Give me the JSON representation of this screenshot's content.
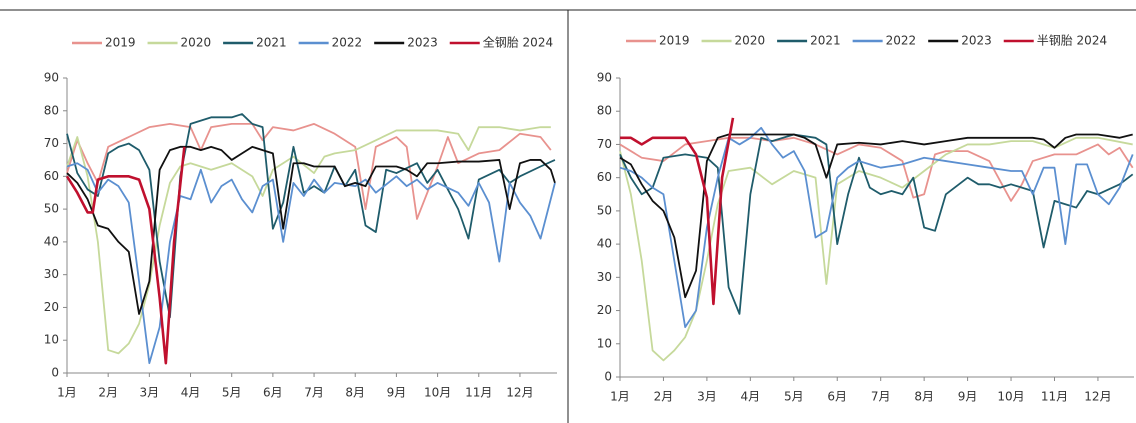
{
  "chart_data": [
    {
      "type": "line",
      "xlim": [
        1,
        12.9
      ],
      "ylim": [
        0,
        90
      ],
      "yticks": [
        0,
        10,
        20,
        30,
        40,
        50,
        60,
        70,
        80,
        90
      ],
      "xticks": [
        {
          "value": 1,
          "label": "1月"
        },
        {
          "value": 2,
          "label": "2月"
        },
        {
          "value": 3,
          "label": "3月"
        },
        {
          "value": 4,
          "label": "4月"
        },
        {
          "value": 5,
          "label": "5月"
        },
        {
          "value": 6,
          "label": "6月"
        },
        {
          "value": 7,
          "label": "7月"
        },
        {
          "value": 8,
          "label": "8月"
        },
        {
          "value": 9,
          "label": "9月"
        },
        {
          "value": 10,
          "label": "10月"
        },
        {
          "value": 11,
          "label": "11月"
        },
        {
          "value": 12,
          "label": "12月"
        }
      ],
      "series": [
        {
          "name": "2019",
          "color": "#e8928e",
          "x": [
            1,
            1.25,
            1.5,
            1.75,
            2,
            2.5,
            3,
            3.5,
            4,
            4.25,
            4.5,
            5,
            5.5,
            5.75,
            6,
            6.5,
            7,
            7.5,
            8,
            8.25,
            8.5,
            9,
            9.25,
            9.5,
            10,
            10.25,
            10.5,
            11,
            11.5,
            12,
            12.5,
            12.75
          ],
          "values": [
            61,
            71,
            64,
            58,
            69,
            72,
            75,
            76,
            75,
            68,
            75,
            76,
            76,
            71,
            75,
            74,
            76,
            73,
            69,
            50,
            69,
            72,
            69,
            47,
            63,
            72,
            64,
            67,
            68,
            73,
            72,
            68
          ]
        },
        {
          "name": "2020",
          "color": "#c6d99b",
          "x": [
            1,
            1.25,
            1.5,
            1.75,
            2,
            2.25,
            2.5,
            2.75,
            3,
            3.25,
            3.5,
            3.75,
            4,
            4.5,
            5,
            5.5,
            5.75,
            6,
            6.5,
            7,
            7.25,
            7.5,
            8,
            8.5,
            9,
            9.5,
            10,
            10.5,
            10.75,
            11,
            11.5,
            12,
            12.5,
            12.75
          ],
          "values": [
            63,
            72,
            60,
            40,
            7,
            6,
            9,
            15,
            27,
            45,
            58,
            63,
            64,
            62,
            64,
            60,
            54,
            62,
            66,
            61,
            66,
            67,
            68,
            71,
            74,
            74,
            74,
            73,
            68,
            75,
            75,
            74,
            75,
            75
          ]
        },
        {
          "name": "2021",
          "color": "#1f5c6b",
          "x": [
            1,
            1.25,
            1.5,
            1.75,
            2,
            2.25,
            2.5,
            2.75,
            3,
            3.25,
            3.5,
            3.75,
            4,
            4.25,
            4.5,
            5,
            5.25,
            5.5,
            5.75,
            6,
            6.25,
            6.5,
            6.75,
            7,
            7.25,
            7.5,
            7.75,
            8,
            8.25,
            8.5,
            8.75,
            9,
            9.5,
            9.75,
            10,
            10.5,
            10.75,
            11,
            11.5,
            11.75,
            12,
            12.5,
            12.85
          ],
          "values": [
            73,
            61,
            56,
            54,
            67,
            69,
            70,
            68,
            62,
            34,
            17,
            60,
            76,
            77,
            78,
            78,
            79,
            76,
            75,
            44,
            52,
            69,
            55,
            57,
            55,
            63,
            57,
            62,
            45,
            43,
            62,
            61,
            64,
            58,
            62,
            50,
            41,
            59,
            62,
            58,
            60,
            63,
            65
          ]
        },
        {
          "name": "2022",
          "color": "#5b8fd0",
          "x": [
            1,
            1.25,
            1.5,
            1.75,
            2,
            2.25,
            2.5,
            2.75,
            3,
            3.25,
            3.5,
            3.75,
            4,
            4.25,
            4.5,
            4.75,
            5,
            5.25,
            5.5,
            5.75,
            6,
            6.25,
            6.5,
            6.75,
            7,
            7.25,
            7.5,
            8,
            8.25,
            8.5,
            9,
            9.25,
            9.5,
            9.75,
            10,
            10.5,
            10.75,
            11,
            11.25,
            11.5,
            11.75,
            12,
            12.25,
            12.5,
            12.85
          ],
          "values": [
            63,
            64,
            62,
            55,
            59,
            57,
            52,
            28,
            3,
            14,
            40,
            54,
            53,
            62,
            52,
            57,
            59,
            53,
            49,
            57,
            59,
            40,
            58,
            54,
            59,
            55,
            58,
            57,
            59,
            55,
            60,
            57,
            59,
            56,
            58,
            55,
            51,
            58,
            52,
            34,
            58,
            52,
            48,
            41,
            58
          ]
        },
        {
          "name": "2023",
          "color": "#111111",
          "x": [
            1,
            1.25,
            1.5,
            1.75,
            2,
            2.25,
            2.5,
            2.75,
            3,
            3.25,
            3.5,
            3.75,
            4,
            4.25,
            4.5,
            4.75,
            5,
            5.25,
            5.5,
            5.75,
            6,
            6.25,
            6.5,
            6.75,
            7,
            7.25,
            7.5,
            7.75,
            8,
            8.25,
            8.5,
            8.75,
            9,
            9.25,
            9.5,
            9.75,
            10,
            10.5,
            11,
            11.5,
            11.75,
            12,
            12.25,
            12.5,
            12.75,
            12.85
          ],
          "values": [
            61,
            58,
            53,
            45,
            44,
            40,
            37,
            18,
            28,
            62,
            68,
            69,
            69,
            68,
            69,
            68,
            65,
            67,
            69,
            68,
            67,
            44,
            64,
            64,
            63,
            63,
            63,
            57,
            58,
            57,
            63,
            63,
            63,
            62,
            60,
            64,
            64,
            64.5,
            64.5,
            65,
            50,
            64,
            65,
            65,
            62,
            58
          ]
        },
        {
          "name": "全钢胎 2024",
          "color": "#c0102e",
          "x": [
            1,
            1.25,
            1.5,
            1.625,
            1.75,
            2,
            2.25,
            2.5,
            2.75,
            3,
            3.25,
            3.4,
            3.6,
            3.85
          ],
          "values": [
            60,
            55,
            49,
            49,
            59,
            60,
            60,
            60,
            59,
            50,
            23,
            3,
            40,
            69
          ]
        }
      ]
    },
    {
      "type": "line",
      "xlim": [
        1,
        12.83
      ],
      "ylim": [
        0,
        90
      ],
      "yticks": [
        0,
        10,
        20,
        30,
        40,
        50,
        60,
        70,
        80,
        90
      ],
      "xticks": [
        {
          "value": 1,
          "label": "1月"
        },
        {
          "value": 2,
          "label": "2月"
        },
        {
          "value": 3,
          "label": "3月"
        },
        {
          "value": 4,
          "label": "4月"
        },
        {
          "value": 5,
          "label": "5月"
        },
        {
          "value": 6,
          "label": "6月"
        },
        {
          "value": 7,
          "label": "7月"
        },
        {
          "value": 8,
          "label": "8月"
        },
        {
          "value": 9,
          "label": "9月"
        },
        {
          "value": 10,
          "label": "10月"
        },
        {
          "value": 11,
          "label": "11月"
        },
        {
          "value": 12,
          "label": "12月"
        }
      ],
      "series": [
        {
          "name": "2019",
          "color": "#e8928e",
          "x": [
            1,
            1.5,
            2,
            2.5,
            3,
            3.5,
            4,
            4.5,
            5,
            5.5,
            6,
            6.5,
            7,
            7.5,
            7.75,
            8,
            8.25,
            8.5,
            9,
            9.5,
            10,
            10.25,
            10.5,
            11,
            11.5,
            12,
            12.25,
            12.5,
            12.8
          ],
          "values": [
            70,
            66,
            65,
            70,
            71,
            72,
            72,
            71,
            72,
            70,
            67,
            70,
            69,
            65,
            54,
            55,
            67,
            68,
            68,
            65,
            53,
            58,
            65,
            67,
            67,
            70,
            67,
            69,
            63
          ]
        },
        {
          "name": "2020",
          "color": "#c6d99b",
          "x": [
            1,
            1.25,
            1.5,
            1.75,
            2,
            2.25,
            2.5,
            2.75,
            3,
            3.25,
            3.5,
            4,
            4.5,
            5,
            5.5,
            5.75,
            6,
            6.5,
            7,
            7.5,
            8,
            8.5,
            9,
            9.5,
            10,
            10.5,
            11,
            11.5,
            12,
            12.8
          ],
          "values": [
            68,
            55,
            35,
            8,
            5,
            8,
            12,
            20,
            35,
            52,
            62,
            63,
            58,
            62,
            60,
            28,
            58,
            62,
            60,
            57,
            62,
            67,
            70,
            70,
            71,
            71,
            69,
            72,
            72,
            70
          ]
        },
        {
          "name": "2021",
          "color": "#1f5c6b",
          "x": [
            1,
            1.25,
            1.5,
            1.75,
            2,
            2.5,
            3,
            3.25,
            3.5,
            3.75,
            4,
            4.25,
            4.5,
            5,
            5.5,
            5.75,
            6,
            6.25,
            6.5,
            6.75,
            7,
            7.25,
            7.5,
            7.75,
            8,
            8.25,
            8.5,
            9,
            9.25,
            9.5,
            9.75,
            10,
            10.5,
            10.75,
            11,
            11.25,
            11.5,
            11.75,
            12,
            12.5,
            12.8
          ],
          "values": [
            67,
            60,
            55,
            57,
            66,
            67,
            66,
            63,
            27,
            19,
            55,
            72,
            71,
            73,
            72,
            70,
            40,
            55,
            66,
            57,
            55,
            56,
            55,
            60,
            45,
            44,
            55,
            60,
            58,
            58,
            57,
            58,
            56,
            39,
            53,
            52,
            51,
            56,
            55,
            58,
            61
          ]
        },
        {
          "name": "2022",
          "color": "#5b8fd0",
          "x": [
            1,
            1.25,
            1.5,
            1.75,
            2,
            2.25,
            2.5,
            2.75,
            3,
            3.25,
            3.5,
            3.75,
            4,
            4.25,
            4.5,
            4.75,
            5,
            5.25,
            5.5,
            5.75,
            6,
            6.25,
            6.5,
            6.75,
            7,
            7.5,
            8,
            8.5,
            9,
            9.5,
            10,
            10.25,
            10.5,
            10.75,
            11,
            11.25,
            11.5,
            11.75,
            12,
            12.25,
            12.5,
            12.8
          ],
          "values": [
            63,
            62,
            60,
            57,
            55,
            35,
            15,
            20,
            45,
            60,
            72,
            70,
            72,
            75,
            70,
            66,
            68,
            62,
            42,
            44,
            60,
            63,
            65,
            64,
            63,
            64,
            66,
            65,
            64,
            63,
            62,
            62,
            55,
            63,
            63,
            40,
            64,
            64,
            55,
            52,
            57,
            67
          ]
        },
        {
          "name": "2023",
          "color": "#111111",
          "x": [
            1,
            1.25,
            1.5,
            1.75,
            2,
            2.25,
            2.5,
            2.75,
            3,
            3.25,
            3.5,
            4,
            4.5,
            5,
            5.25,
            5.5,
            5.75,
            6,
            6.5,
            7,
            7.5,
            8,
            8.5,
            9,
            9.5,
            10,
            10.5,
            10.75,
            11,
            11.25,
            11.5,
            12,
            12.5,
            12.8
          ],
          "values": [
            66,
            64,
            58,
            53,
            50,
            42,
            24,
            32,
            65,
            72,
            73,
            73,
            73,
            73,
            72,
            70,
            60,
            70,
            70.5,
            70,
            71,
            70,
            71,
            72,
            72,
            72,
            72,
            71.5,
            69,
            72,
            73,
            73,
            72,
            73
          ]
        },
        {
          "name": "半钢胎 2024",
          "color": "#c0102e",
          "x": [
            1,
            1.25,
            1.5,
            1.75,
            2,
            2.25,
            2.5,
            2.75,
            3,
            3.15,
            3.35,
            3.6
          ],
          "values": [
            72,
            72,
            70,
            72,
            72,
            72,
            72,
            67,
            54,
            22,
            60,
            78
          ]
        }
      ]
    }
  ]
}
